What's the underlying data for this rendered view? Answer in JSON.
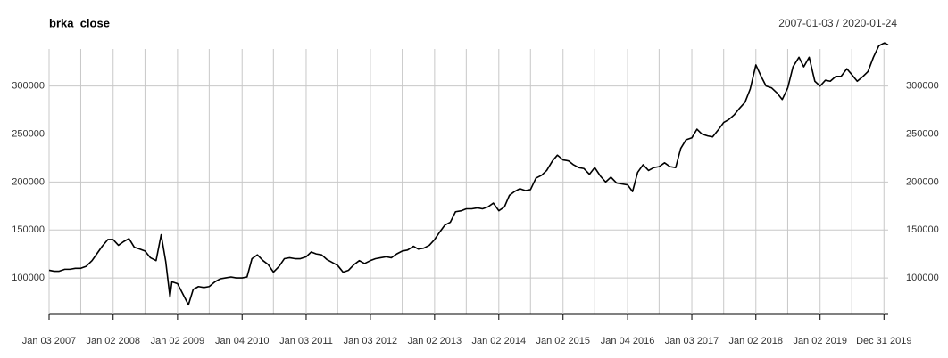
{
  "chart_data": {
    "type": "line",
    "title": "brka_close",
    "subtitle": "2007-01-03 / 2020-01-24",
    "color": "#000000",
    "grid": true,
    "xlim": [
      "2007-01-03",
      "2020-01-24"
    ],
    "xticks": [
      {
        "value": "2007-01-03",
        "label": "Jan 03 2007"
      },
      {
        "value": "2008-01-02",
        "label": "Jan 02 2008"
      },
      {
        "value": "2009-01-02",
        "label": "Jan 02 2009"
      },
      {
        "value": "2010-01-04",
        "label": "Jan 04 2010"
      },
      {
        "value": "2011-01-03",
        "label": "Jan 03 2011"
      },
      {
        "value": "2012-01-03",
        "label": "Jan 03 2012"
      },
      {
        "value": "2013-01-02",
        "label": "Jan 02 2013"
      },
      {
        "value": "2014-01-02",
        "label": "Jan 02 2014"
      },
      {
        "value": "2015-01-02",
        "label": "Jan 02 2015"
      },
      {
        "value": "2016-01-04",
        "label": "Jan 04 2016"
      },
      {
        "value": "2017-01-03",
        "label": "Jan 03 2017"
      },
      {
        "value": "2018-01-02",
        "label": "Jan 02 2018"
      },
      {
        "value": "2019-01-02",
        "label": "Jan 02 2019"
      },
      {
        "value": "2019-12-31",
        "label": "Dec 31 2019"
      }
    ],
    "xgrid": [
      "2007-07-02",
      "2008-07-01",
      "2009-07-01",
      "2010-07-01",
      "2011-07-01",
      "2012-07-02",
      "2013-07-01",
      "2014-07-01",
      "2015-07-01",
      "2016-07-01",
      "2017-07-03",
      "2018-07-02",
      "2019-07-01"
    ],
    "ylim": [
      62000,
      347000
    ],
    "yticks": [
      100000,
      150000,
      200000,
      250000,
      300000
    ],
    "x": [
      "2007-01-03",
      "2007-02-01",
      "2007-03-01",
      "2007-04-02",
      "2007-05-01",
      "2007-06-01",
      "2007-07-02",
      "2007-08-01",
      "2007-09-04",
      "2007-10-01",
      "2007-11-01",
      "2007-12-03",
      "2008-01-02",
      "2008-02-01",
      "2008-03-03",
      "2008-04-01",
      "2008-05-01",
      "2008-06-02",
      "2008-07-01",
      "2008-08-01",
      "2008-09-02",
      "2008-10-01",
      "2008-10-27",
      "2008-11-20",
      "2008-12-01",
      "2009-01-02",
      "2009-02-02",
      "2009-03-05",
      "2009-04-01",
      "2009-05-01",
      "2009-06-01",
      "2009-07-01",
      "2009-08-03",
      "2009-09-01",
      "2009-10-01",
      "2009-11-02",
      "2009-12-01",
      "2010-01-04",
      "2010-02-01",
      "2010-03-01",
      "2010-04-01",
      "2010-05-03",
      "2010-06-01",
      "2010-07-01",
      "2010-08-02",
      "2010-09-01",
      "2010-10-01",
      "2010-11-01",
      "2010-12-01",
      "2011-01-03",
      "2011-02-01",
      "2011-03-01",
      "2011-04-01",
      "2011-05-02",
      "2011-06-01",
      "2011-07-01",
      "2011-08-01",
      "2011-09-01",
      "2011-10-03",
      "2011-11-01",
      "2011-12-01",
      "2012-01-03",
      "2012-02-01",
      "2012-03-01",
      "2012-04-02",
      "2012-05-01",
      "2012-06-01",
      "2012-07-02",
      "2012-08-01",
      "2012-09-04",
      "2012-10-01",
      "2012-11-01",
      "2012-12-03",
      "2013-01-02",
      "2013-02-01",
      "2013-03-01",
      "2013-04-01",
      "2013-05-01",
      "2013-06-03",
      "2013-07-01",
      "2013-08-01",
      "2013-09-03",
      "2013-10-01",
      "2013-11-01",
      "2013-12-02",
      "2014-01-02",
      "2014-02-03",
      "2014-03-03",
      "2014-04-01",
      "2014-05-01",
      "2014-06-02",
      "2014-07-01",
      "2014-08-01",
      "2014-09-02",
      "2014-10-01",
      "2014-11-03",
      "2014-12-01",
      "2015-01-02",
      "2015-02-02",
      "2015-03-02",
      "2015-04-01",
      "2015-05-01",
      "2015-06-01",
      "2015-07-01",
      "2015-08-03",
      "2015-09-01",
      "2015-10-01",
      "2015-11-02",
      "2015-12-01",
      "2016-01-04",
      "2016-02-01",
      "2016-03-01",
      "2016-04-01",
      "2016-05-02",
      "2016-06-01",
      "2016-07-01",
      "2016-08-01",
      "2016-09-01",
      "2016-10-03",
      "2016-11-01",
      "2016-12-01",
      "2017-01-03",
      "2017-02-01",
      "2017-03-01",
      "2017-04-03",
      "2017-05-01",
      "2017-06-01",
      "2017-07-03",
      "2017-08-01",
      "2017-09-01",
      "2017-10-02",
      "2017-11-01",
      "2017-12-01",
      "2018-01-02",
      "2018-02-01",
      "2018-03-01",
      "2018-04-02",
      "2018-05-01",
      "2018-06-01",
      "2018-07-02",
      "2018-08-01",
      "2018-09-04",
      "2018-10-01",
      "2018-11-01",
      "2018-12-03",
      "2019-01-02",
      "2019-02-01",
      "2019-03-01",
      "2019-04-01",
      "2019-05-01",
      "2019-06-03",
      "2019-07-01",
      "2019-08-01",
      "2019-09-03",
      "2019-10-01",
      "2019-11-01",
      "2019-12-02",
      "2020-01-02",
      "2020-01-24"
    ],
    "values": [
      108000,
      107000,
      107000,
      109000,
      109000,
      110000,
      110000,
      112000,
      118000,
      125000,
      133000,
      140000,
      140000,
      134000,
      138000,
      141000,
      132000,
      130000,
      128000,
      121000,
      118000,
      145000,
      117000,
      80000,
      96000,
      94000,
      83000,
      72000,
      88000,
      91000,
      90000,
      91000,
      96000,
      99000,
      100000,
      101000,
      100000,
      100000,
      101000,
      120000,
      124000,
      118000,
      114000,
      106000,
      112000,
      120000,
      121000,
      120000,
      120000,
      122000,
      127000,
      125000,
      124000,
      119000,
      116000,
      113000,
      106000,
      108000,
      114000,
      118000,
      115000,
      118000,
      120000,
      121000,
      122000,
      121000,
      125000,
      128000,
      129000,
      133000,
      130000,
      131000,
      134000,
      140000,
      148000,
      155000,
      158000,
      169000,
      170000,
      172000,
      172000,
      173000,
      172000,
      174000,
      178000,
      170000,
      174000,
      186000,
      190000,
      193000,
      191000,
      192000,
      204000,
      207000,
      212000,
      222000,
      228000,
      223000,
      222000,
      218000,
      215000,
      214000,
      208000,
      215000,
      206000,
      200000,
      205000,
      199000,
      198000,
      197000,
      190000,
      210000,
      218000,
      212000,
      215000,
      216000,
      220000,
      216000,
      215000,
      235000,
      244000,
      246000,
      255000,
      250000,
      248000,
      247000,
      254000,
      262000,
      265000,
      270000,
      277000,
      283000,
      297000,
      322000,
      310000,
      300000,
      298000,
      293000,
      286000,
      298000,
      320000,
      330000,
      320000,
      330000,
      305000,
      300000,
      306000,
      305000,
      310000,
      310000,
      318000,
      312000,
      305000,
      310000,
      315000,
      330000,
      342000,
      345000,
      343000
    ]
  }
}
